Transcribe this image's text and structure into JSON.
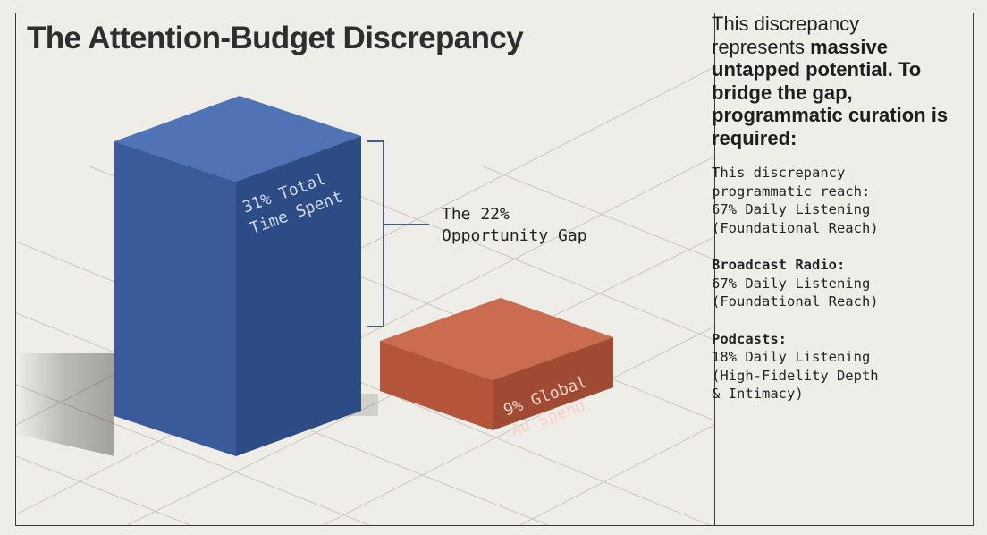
{
  "title": "The Attention-Budget Discrepancy",
  "bars": [
    {
      "label_lines": [
        "31% Total",
        "Time Spent"
      ],
      "value": 31,
      "color": "#3a5a9a"
    },
    {
      "label_lines": [
        "9% Global",
        "Ad Spend"
      ],
      "value": 9,
      "color": "#b4543a"
    }
  ],
  "gap": {
    "label_lines": [
      "The 22%",
      "Opportunity Gap"
    ],
    "value": 22
  },
  "sidebar": {
    "intro_plain": "This discrepancy represents",
    "intro_bold": "massive untapped potential. To bridge the gap, programmatic curation is required:",
    "blocks": [
      {
        "heading": "",
        "lines": [
          "This discrepancy",
          "programmatic reach:",
          "67% Daily Listening",
          "(Foundational Reach)"
        ]
      },
      {
        "heading": "Broadcast Radio:",
        "lines": [
          "67% Daily Listening",
          "(Foundational Reach)"
        ]
      },
      {
        "heading": "Podcasts:",
        "lines": [
          "18% Daily Listening",
          "(High-Fidelity Depth",
          "& Intimacy)"
        ]
      }
    ]
  },
  "colors": {
    "blue_front": "#3a5a9a",
    "orange_front": "#b4543a",
    "background": "#efede8"
  }
}
